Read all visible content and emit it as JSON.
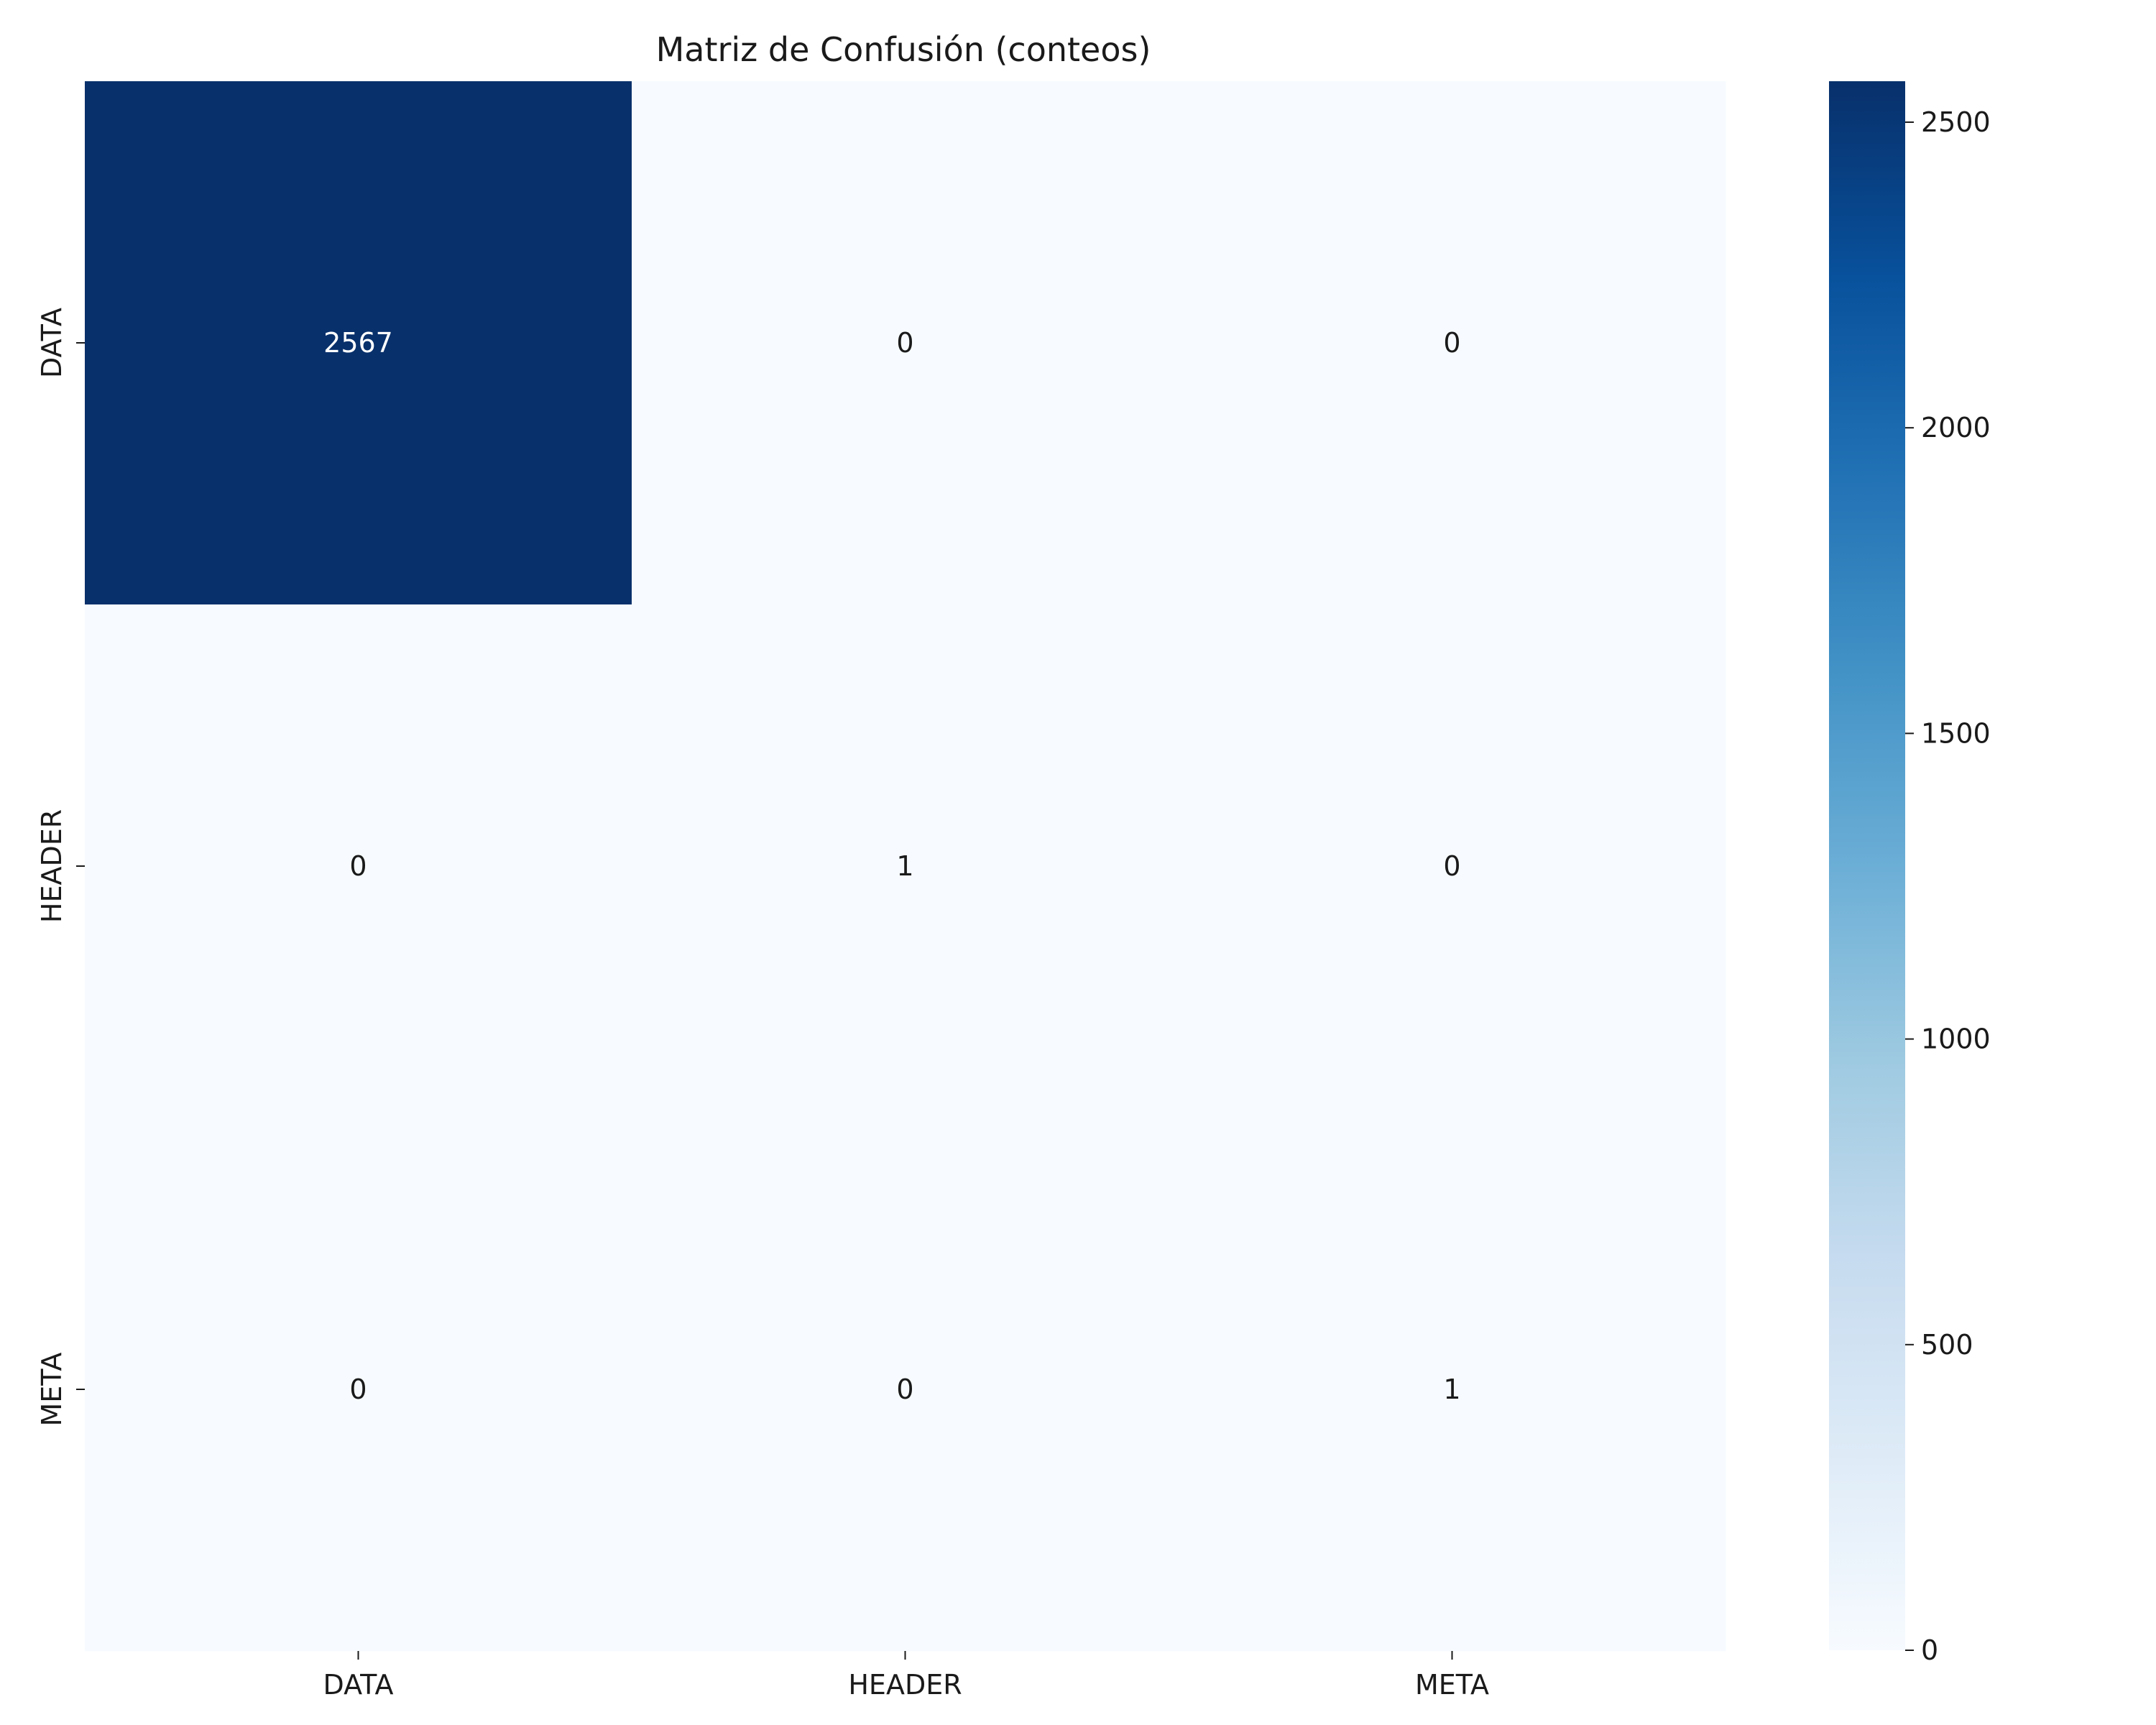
{
  "chart_data": {
    "type": "heatmap",
    "title": "Matriz de Confusión (conteos)",
    "xlabel": "",
    "ylabel": "",
    "x_categories": [
      "DATA",
      "HEADER",
      "META"
    ],
    "y_categories": [
      "DATA",
      "HEADER",
      "META"
    ],
    "values": [
      [
        2567,
        0,
        0
      ],
      [
        0,
        1,
        0
      ],
      [
        0,
        0,
        1
      ]
    ],
    "annotations": [
      [
        "2567",
        "0",
        "0"
      ],
      [
        "0",
        "1",
        "0"
      ],
      [
        "0",
        "0",
        "1"
      ]
    ],
    "colormap": "Blues",
    "colorbar": {
      "range": [
        0,
        2567
      ],
      "ticks": [
        0,
        500,
        1000,
        1500,
        2000,
        2500
      ],
      "tick_labels": [
        "0",
        "500",
        "1000",
        "1500",
        "2000",
        "2500"
      ]
    },
    "grid": false,
    "legend": "colorbar-right"
  }
}
